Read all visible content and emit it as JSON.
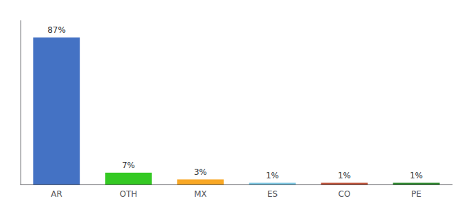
{
  "chart_data": {
    "type": "bar",
    "categories": [
      "AR",
      "OTH",
      "MX",
      "ES",
      "CO",
      "PE"
    ],
    "values": [
      87,
      7,
      3,
      1,
      1,
      1
    ],
    "value_labels": [
      "87%",
      "7%",
      "3%",
      "1%",
      "1%",
      "1%"
    ],
    "colors": [
      "#4472c4",
      "#34c923",
      "#f9a825",
      "#7ec8e3",
      "#c0533a",
      "#2d8a2d"
    ],
    "ylim": [
      0,
      97
    ],
    "tick_labels": "x",
    "grid": false,
    "data_labels": true
  }
}
